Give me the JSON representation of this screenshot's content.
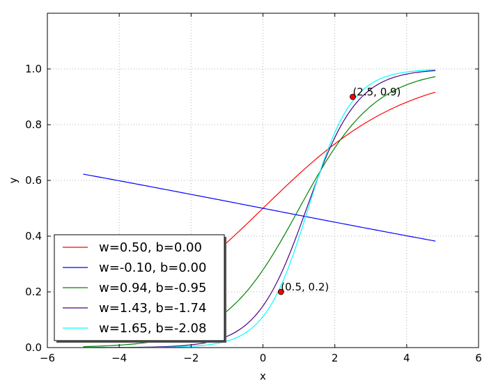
{
  "chart_data": {
    "type": "line",
    "xlabel": "x",
    "ylabel": "y",
    "xlim": [
      -6,
      6
    ],
    "ylim": [
      0,
      1.2
    ],
    "xticks": [
      "−6",
      "−4",
      "−2",
      "0",
      "2",
      "4",
      "6"
    ],
    "yticks": [
      "0.0",
      "0.2",
      "0.4",
      "0.6",
      "0.8",
      "1.0"
    ],
    "grid": true,
    "legend_position": "bottom-left",
    "x_range": [
      -5,
      4.8
    ],
    "series": [
      {
        "name": "w=0.50, b=0.00",
        "w": 0.5,
        "b": 0.0,
        "color": "#ff0000"
      },
      {
        "name": "w=-0.10, b=0.00",
        "w": -0.1,
        "b": 0.0,
        "color": "#0000ff"
      },
      {
        "name": "w=0.94, b=-0.95",
        "w": 0.94,
        "b": -0.95,
        "color": "#008000"
      },
      {
        "name": "w=1.43, b=-1.74",
        "w": 1.43,
        "b": -1.74,
        "color": "#4b0082"
      },
      {
        "name": "w=1.65, b=-2.08",
        "w": 1.65,
        "b": -2.08,
        "color": "#00ffff"
      }
    ],
    "points": [
      {
        "x": 0.5,
        "y": 0.2,
        "label": "(0.5, 0.2)",
        "color": "#ff0000"
      },
      {
        "x": 2.5,
        "y": 0.9,
        "label": "(2.5, 0.9)",
        "color": "#ff0000"
      }
    ]
  }
}
